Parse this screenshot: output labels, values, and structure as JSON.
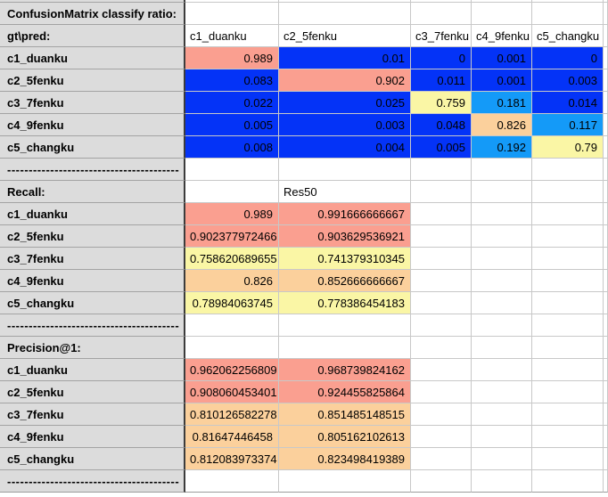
{
  "title": "ConfusionMatrix classify ratio:",
  "matrix": {
    "corner_label": "gt\\pred:",
    "col_headers": [
      "c1_duanku",
      "c2_5fenku",
      "c3_7fenku",
      "c4_9fenku",
      "c5_changku"
    ],
    "rows": [
      {
        "label": "c1_duanku",
        "values": [
          "0.989",
          "0.01",
          "0",
          "0.001",
          "0"
        ],
        "cell_colors": [
          "salmon",
          "blue",
          "blue",
          "blue",
          "blue"
        ]
      },
      {
        "label": "c2_5fenku",
        "values": [
          "0.083",
          "0.902",
          "0.011",
          "0.001",
          "0.003"
        ],
        "cell_colors": [
          "blue",
          "salmon",
          "blue",
          "blue",
          "blue"
        ]
      },
      {
        "label": "c3_7fenku",
        "values": [
          "0.022",
          "0.025",
          "0.759",
          "0.181",
          "0.014"
        ],
        "cell_colors": [
          "blue",
          "blue",
          "yellow",
          "light_blue",
          "blue"
        ]
      },
      {
        "label": "c4_9fenku",
        "values": [
          "0.005",
          "0.003",
          "0.048",
          "0.826",
          "0.117"
        ],
        "cell_colors": [
          "blue",
          "blue",
          "blue",
          "orange",
          "light_blue"
        ]
      },
      {
        "label": "c5_changku",
        "values": [
          "0.008",
          "0.004",
          "0.005",
          "0.192",
          "0.79"
        ],
        "cell_colors": [
          "blue",
          "blue",
          "blue",
          "light_blue",
          "yellow"
        ]
      }
    ]
  },
  "separator_dashes": "----------------------------------------",
  "recall": {
    "label": "Recall:",
    "model_header": "Res50",
    "rows": [
      {
        "label": "c1_duanku",
        "values": [
          "0.989",
          "0.991666666667"
        ],
        "cell_colors": [
          "salmon",
          "salmon"
        ]
      },
      {
        "label": "c2_5fenku",
        "values": [
          "0.902377972466",
          "0.903629536921"
        ],
        "cell_colors": [
          "salmon",
          "salmon"
        ]
      },
      {
        "label": "c3_7fenku",
        "values": [
          "0.758620689655",
          "0.741379310345"
        ],
        "cell_colors": [
          "yellow",
          "yellow"
        ]
      },
      {
        "label": "c4_9fenku",
        "values": [
          "0.826",
          "0.852666666667"
        ],
        "cell_colors": [
          "orange",
          "orange"
        ]
      },
      {
        "label": "c5_changku",
        "values": [
          "0.78984063745",
          "0.778386454183"
        ],
        "cell_colors": [
          "yellow",
          "yellow"
        ]
      }
    ]
  },
  "precision": {
    "label": "Precision@1:",
    "rows": [
      {
        "label": "c1_duanku",
        "values": [
          "0.962062256809",
          "0.968739824162"
        ],
        "cell_colors": [
          "salmon",
          "salmon"
        ]
      },
      {
        "label": "c2_5fenku",
        "values": [
          "0.908060453401",
          "0.924455825864"
        ],
        "cell_colors": [
          "salmon",
          "salmon"
        ]
      },
      {
        "label": "c3_7fenku",
        "values": [
          "0.810126582278",
          "0.851485148515"
        ],
        "cell_colors": [
          "orange",
          "orange"
        ]
      },
      {
        "label": "c4_9fenku",
        "values": [
          "0.81647446458",
          "0.805162102613"
        ],
        "cell_colors": [
          "orange",
          "orange"
        ]
      },
      {
        "label": "c5_changku",
        "values": [
          "0.812083973374",
          "0.823498419389"
        ],
        "cell_colors": [
          "orange",
          "orange"
        ]
      }
    ]
  },
  "colors": {
    "salmon": "#FA9F90",
    "yellow": "#FAF6A5",
    "orange": "#FBD09C",
    "blue": "#0433F7",
    "light_blue": "#149AF8",
    "header_gray": "#DCDCDC",
    "grid": "#C8C8C8",
    "col1_line": "#A3A3A3",
    "col1_sep": "#3C3C3C",
    "bottom_line": "#9B9B9B"
  }
}
